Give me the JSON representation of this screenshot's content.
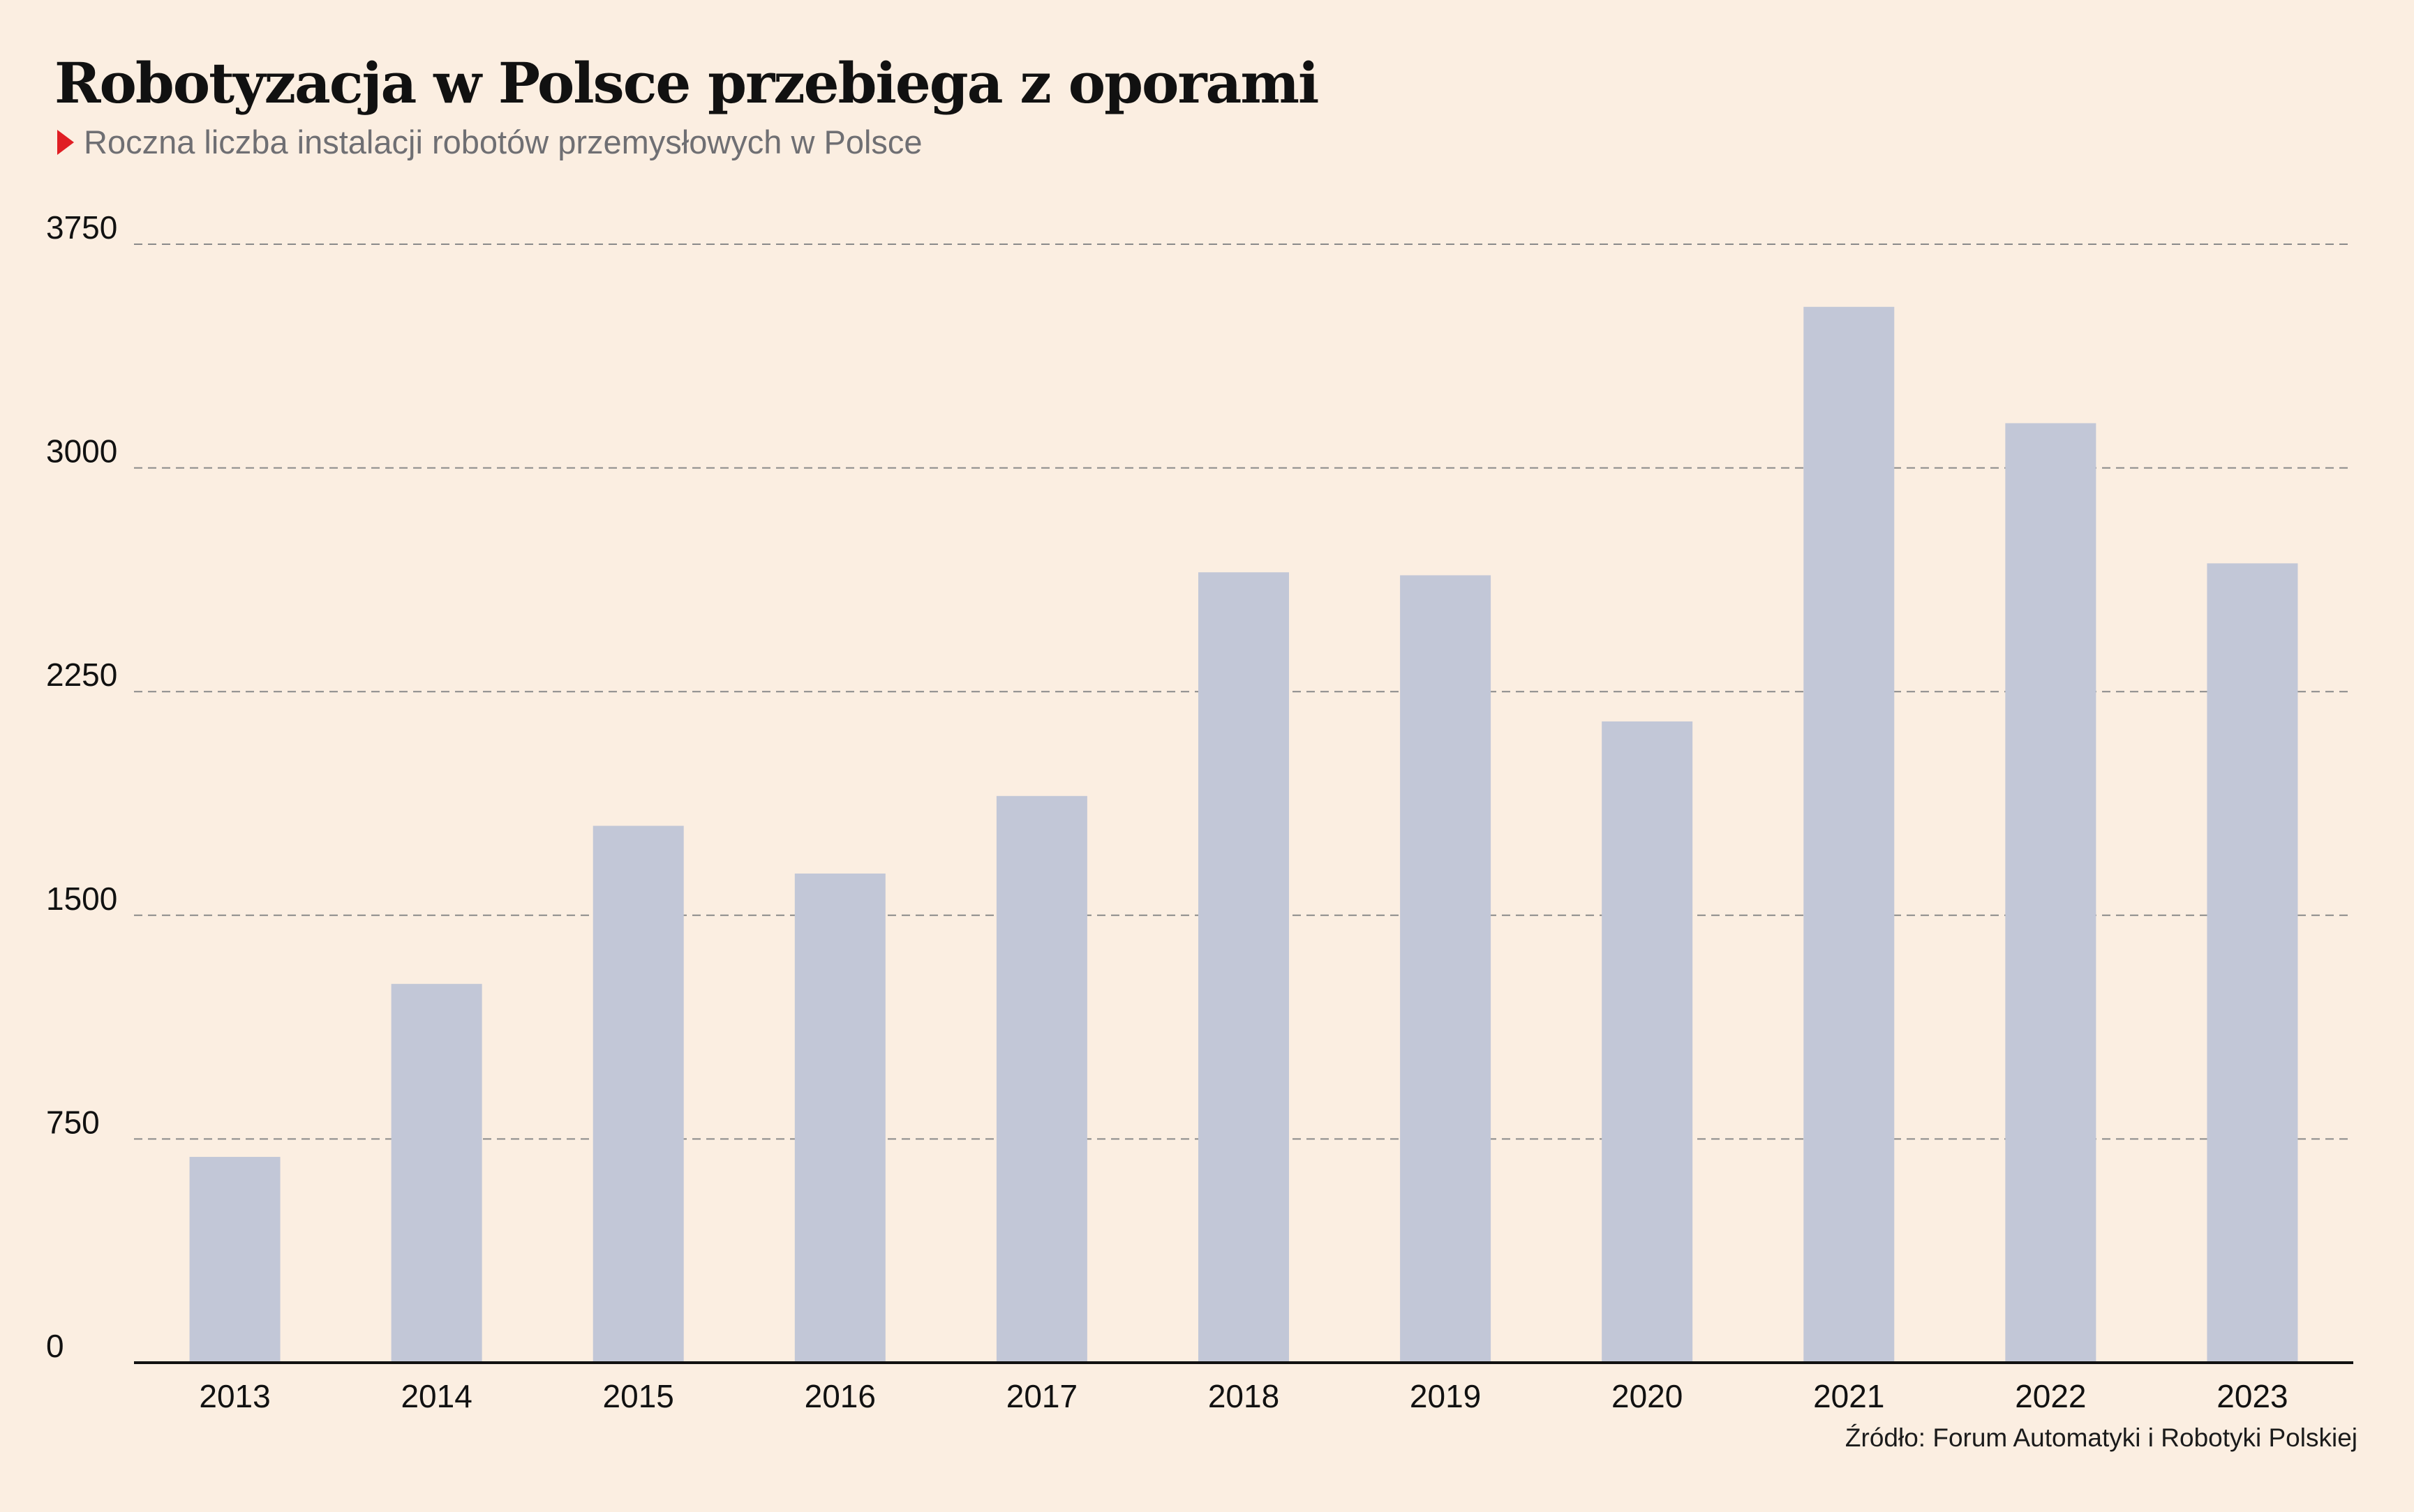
{
  "title": "Robotyzacja w Polsce przebiega z oporami",
  "subtitle": "Roczna liczba instalacji robotów przemysłowych w Polsce",
  "source": "Źródło: Forum Automatyki i Robotyki Polskiej",
  "colors": {
    "background": "#fbeee1",
    "bar": "#c2c7d7",
    "marker": "#e01e24",
    "grid": "#8a8a8a",
    "axis": "#111111"
  },
  "chart_data": {
    "type": "bar",
    "categories": [
      "2013",
      "2014",
      "2015",
      "2016",
      "2017",
      "2018",
      "2019",
      "2020",
      "2021",
      "2022",
      "2023"
    ],
    "values": [
      690,
      1270,
      1800,
      1640,
      1900,
      2650,
      2640,
      2150,
      3540,
      3150,
      2680
    ],
    "title": "Robotyzacja w Polsce przebiega z oporami",
    "xlabel": "",
    "ylabel": "",
    "ylim": [
      0,
      3750
    ],
    "yticks": [
      0,
      750,
      1500,
      2250,
      3000,
      3750
    ],
    "grid": true
  }
}
